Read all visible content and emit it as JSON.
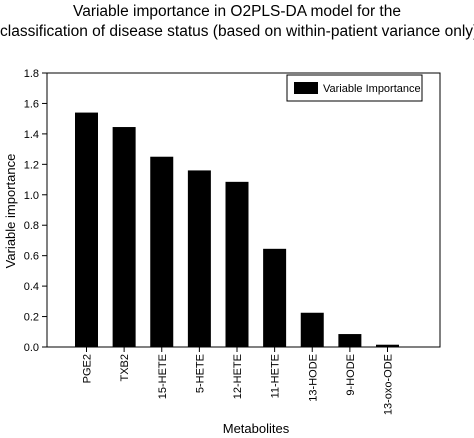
{
  "chart_data": {
    "type": "bar",
    "title_lines": [
      "Variable importance in O2PLS-DA model for the",
      "classification of disease status (based on within-patient variance only)"
    ],
    "xlabel": "Metabolites",
    "ylabel": "Variable importance",
    "categories": [
      "PGE2",
      "TXB2",
      "15-HETE",
      "5-HETE",
      "12-HETE",
      "11-HETE",
      "13-HODE",
      "9-HODE",
      "13-oxo-ODE"
    ],
    "series": [
      {
        "name": "Variable Importance",
        "values": [
          1.54,
          1.445,
          1.25,
          1.16,
          1.085,
          0.645,
          0.225,
          0.085,
          0.015
        ]
      }
    ],
    "ylim": [
      0,
      1.8
    ],
    "yticks": [
      "0.0",
      "0.2",
      "0.4",
      "0.6",
      "0.8",
      "1.0",
      "1.2",
      "1.4",
      "1.6",
      "1.8"
    ],
    "legend_position": "top-right",
    "grid": false,
    "bar_color": "#000000"
  }
}
